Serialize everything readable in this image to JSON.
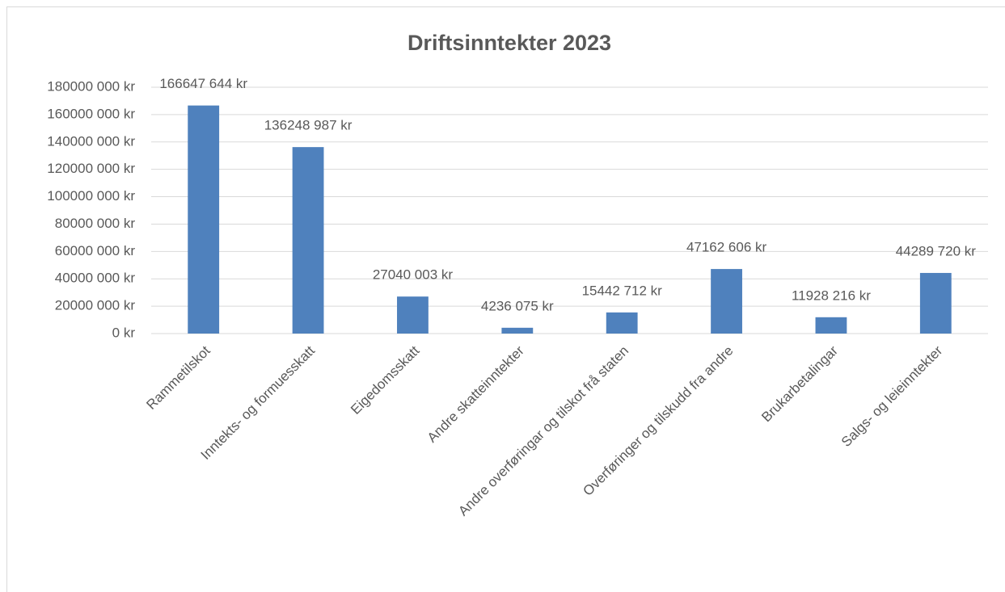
{
  "chart_data": {
    "type": "bar",
    "title": "Driftsinntekter 2023",
    "categories": [
      "Rammetilskot",
      "Inntekts- og formuesskatt",
      "Eigedomsskatt",
      "Andre skatteinntekter",
      "Andre overføringar og tilskot frå staten",
      "Overføringer og tilskudd fra andre",
      "Brukarbetalingar",
      "Salgs- og leieinntekter"
    ],
    "values": [
      166647644,
      136248987,
      27040003,
      4236075,
      15442712,
      47162606,
      11928216,
      44289720
    ],
    "value_labels": [
      "166647 644 kr",
      "136248 987 kr",
      "27040 003 kr",
      "4236 075 kr",
      "15442 712 kr",
      "47162 606 kr",
      "11928 216 kr",
      "44289 720 kr"
    ],
    "color": "#4f81bd",
    "ylim": [
      0,
      180000000
    ],
    "yticks": [
      {
        "value": 0,
        "label": "0 kr"
      },
      {
        "value": 20000000,
        "label": "20000 000 kr"
      },
      {
        "value": 40000000,
        "label": "40000 000 kr"
      },
      {
        "value": 60000000,
        "label": "60000 000 kr"
      },
      {
        "value": 80000000,
        "label": "80000 000 kr"
      },
      {
        "value": 100000000,
        "label": "100000 000 kr"
      },
      {
        "value": 120000000,
        "label": "120000 000 kr"
      },
      {
        "value": 140000000,
        "label": "140000 000 kr"
      },
      {
        "value": 160000000,
        "label": "160000 000 kr"
      },
      {
        "value": 180000000,
        "label": "180000 000 kr"
      }
    ],
    "grid": true
  }
}
